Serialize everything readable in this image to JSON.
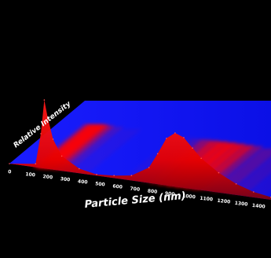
{
  "chart_data": {
    "type": "area",
    "xlabel": "Particle Size (nm)",
    "ylabel": "Relative Intensity",
    "xticks": [
      "0",
      "100",
      "200",
      "300",
      "400",
      "500",
      "600",
      "700",
      "800",
      "900",
      "1000",
      "1100",
      "1200",
      "1300",
      "1400"
    ],
    "xlim": [
      0,
      1500
    ],
    "series": [
      {
        "x": [
          0,
          150,
          180,
          200,
          220,
          250,
          300,
          400,
          500,
          600,
          700,
          800,
          850,
          900,
          950,
          1000,
          1050,
          1100,
          1200,
          1300,
          1400,
          1500
        ],
        "y": [
          0,
          0.05,
          0.5,
          1.0,
          0.75,
          0.45,
          0.22,
          0.07,
          0.02,
          0.04,
          0.08,
          0.25,
          0.5,
          0.78,
          0.9,
          0.85,
          0.7,
          0.55,
          0.35,
          0.2,
          0.1,
          0.05
        ]
      }
    ],
    "colors": {
      "background": "#000000",
      "floor": "#1418ff",
      "peak": "#ff0000",
      "text": "#ffffff"
    }
  }
}
